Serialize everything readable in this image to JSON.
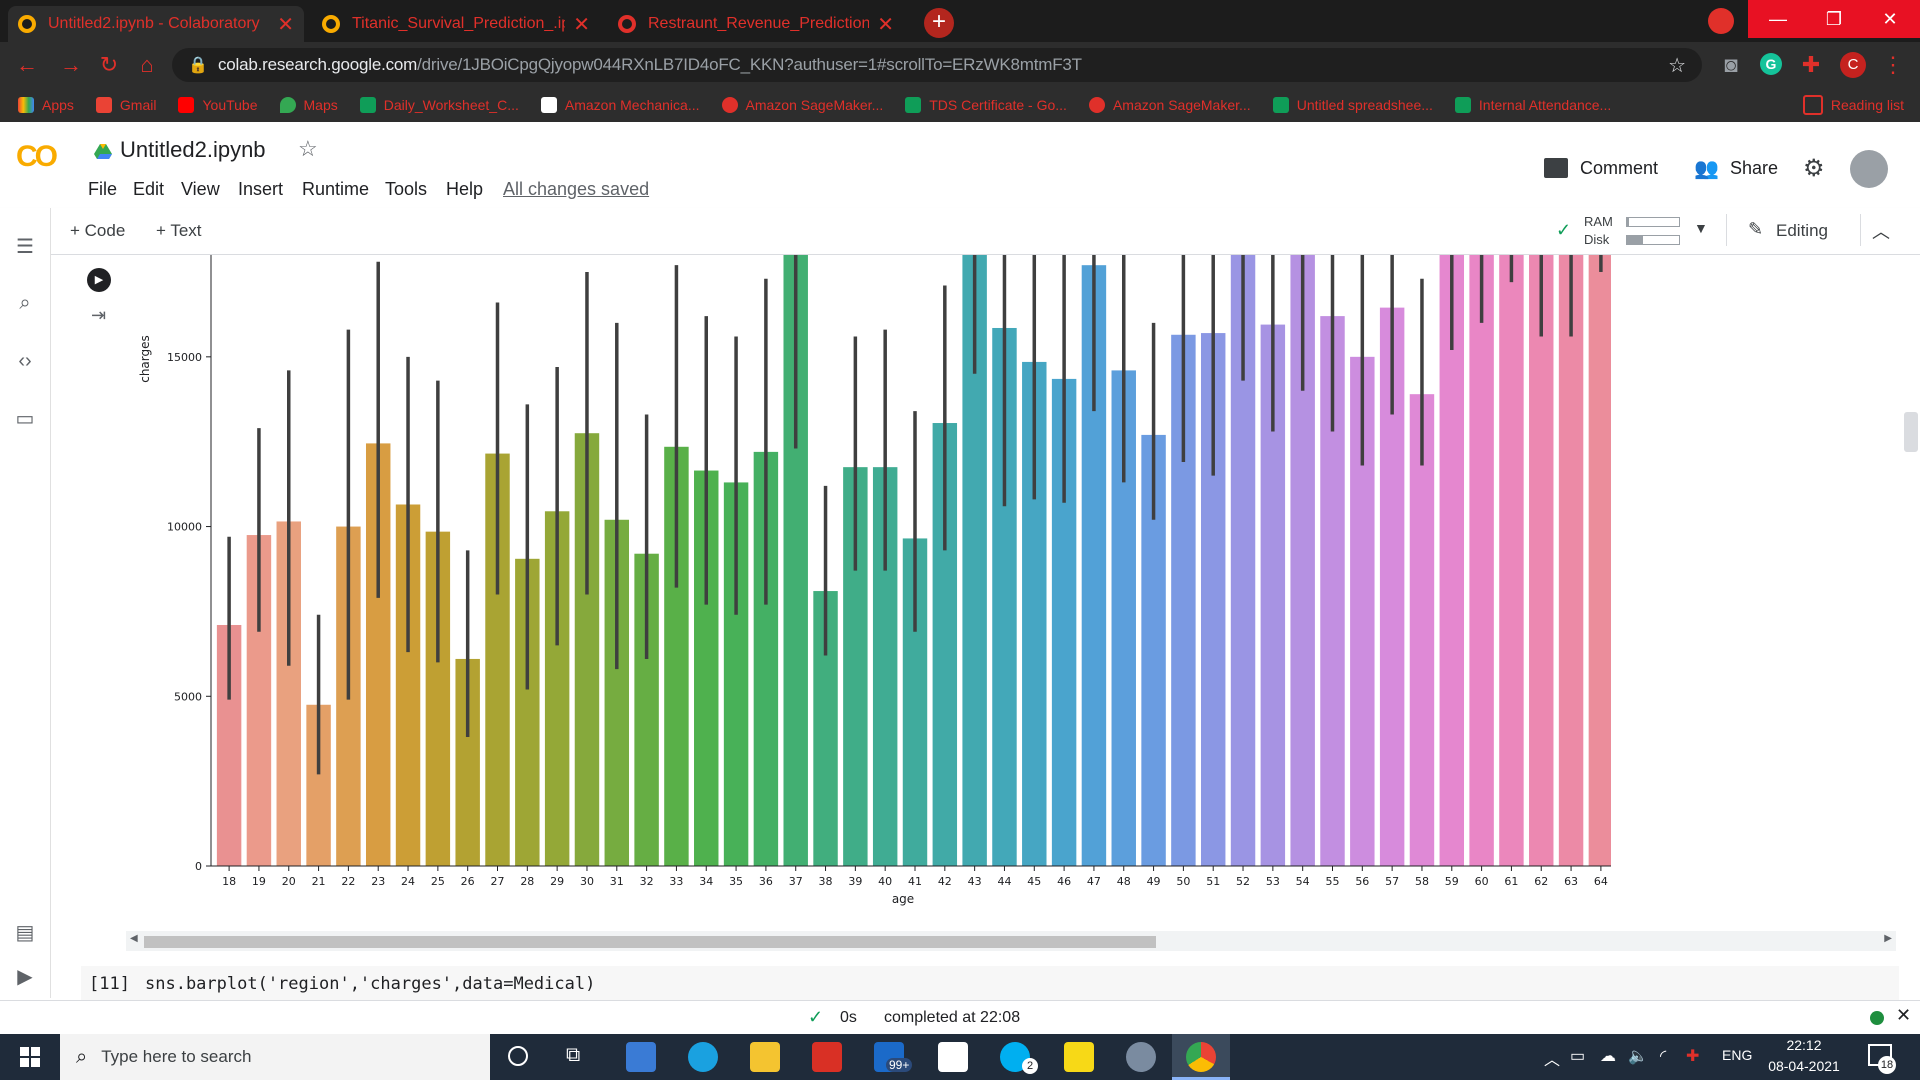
{
  "browser": {
    "tabs": [
      {
        "title": "Untitled2.ipynb - Colaboratory",
        "active": true
      },
      {
        "title": "Titanic_Survival_Prediction_.ipyn",
        "active": false
      },
      {
        "title": "Restraunt_Revenue_Prediction.ip",
        "active": false
      }
    ],
    "url_host": "colab.research.google.com",
    "url_path": "/drive/1JBOiCpgQjyopw044RXnLB7ID4oFC_KKN?authuser=1#scrollTo=ERzWK8mtmF3T",
    "profile_initial": "C",
    "bookmarks": [
      "Apps",
      "Gmail",
      "YouTube",
      "Maps",
      "Daily_Worksheet_C...",
      "Amazon Mechanica...",
      "Amazon SageMaker...",
      "TDS Certificate - Go...",
      "Amazon SageMaker...",
      "Untitled spreadshee...",
      "Internal Attendance...",
      "Reading list"
    ]
  },
  "colab": {
    "logo": "CO",
    "notebook_title": "Untitled2.ipynb",
    "menu": [
      "File",
      "Edit",
      "View",
      "Insert",
      "Runtime",
      "Tools",
      "Help"
    ],
    "save_status": "All changes saved",
    "comment_label": "Comment",
    "share_label": "Share",
    "add_code_label": "+ Code",
    "add_text_label": "+ Text",
    "ram_label": "RAM",
    "disk_label": "Disk",
    "editing_label": "Editing"
  },
  "next_cell": {
    "prompt": "[11]",
    "code": "sns.barplot('region','charges',data=Medical)"
  },
  "status": {
    "elapsed": "0s",
    "message": "completed at 22:08"
  },
  "taskbar": {
    "search_placeholder": "Type here to search",
    "mail_badge": "99+",
    "skype_badge": "2",
    "language": "ENG",
    "time": "22:12",
    "date": "08-04-2021",
    "notification_count": "18"
  },
  "chart_data": {
    "type": "bar",
    "xlabel": "age",
    "ylabel": "charges",
    "ylim": [
      0,
      18000
    ],
    "yticks": [
      0,
      5000,
      10000,
      15000
    ],
    "categories": [
      "18",
      "19",
      "20",
      "21",
      "22",
      "23",
      "24",
      "25",
      "26",
      "27",
      "28",
      "29",
      "30",
      "31",
      "32",
      "33",
      "34",
      "35",
      "36",
      "37",
      "38",
      "39",
      "40",
      "41",
      "42",
      "43",
      "44",
      "45",
      "46",
      "47",
      "48",
      "49",
      "50",
      "51",
      "52",
      "53",
      "54",
      "55",
      "56",
      "57",
      "58",
      "59",
      "60",
      "61",
      "62",
      "63",
      "64"
    ],
    "values": [
      7100,
      9750,
      10150,
      4750,
      10000,
      12450,
      10650,
      9850,
      6100,
      12150,
      9050,
      10450,
      12750,
      10200,
      9200,
      12350,
      11650,
      11300,
      12200,
      18000,
      8100,
      11750,
      11750,
      9650,
      13050,
      18000,
      15850,
      14850,
      14350,
      17700,
      14600,
      12700,
      15650,
      15700,
      18000,
      15950,
      18000,
      16200,
      15000,
      16450,
      13900,
      18000,
      18000,
      18000,
      18000,
      18000,
      18000
    ],
    "ci_low": [
      4900,
      6900,
      5900,
      2700,
      4900,
      7900,
      6300,
      6000,
      3800,
      8000,
      5200,
      6500,
      8000,
      5800,
      6100,
      8200,
      7700,
      7400,
      7700,
      12300,
      6200,
      8700,
      8700,
      6900,
      9300,
      14500,
      10600,
      10800,
      10700,
      13400,
      11300,
      10200,
      11900,
      11500,
      14300,
      12800,
      14000,
      12800,
      11800,
      13300,
      11800,
      15200,
      16000,
      17200,
      15600,
      15600,
      17500
    ],
    "ci_high": [
      9700,
      12900,
      14600,
      7400,
      15800,
      17800,
      15000,
      14300,
      9300,
      16600,
      13600,
      14700,
      17500,
      16000,
      13300,
      17700,
      16200,
      15600,
      17300,
      18000,
      11200,
      15600,
      15800,
      13400,
      17100,
      18000,
      18000,
      18000,
      18000,
      18000,
      18000,
      16000,
      18000,
      18000,
      18000,
      18000,
      18000,
      18000,
      18000,
      18000,
      17300,
      18000,
      18000,
      18000,
      18000,
      18000,
      18000
    ],
    "colors": [
      "#e99191",
      "#eb9a8b",
      "#e9a17f",
      "#e4a067",
      "#dd9f52",
      "#d89d42",
      "#cc9e36",
      "#bfa032",
      "#b3a232",
      "#a9a433",
      "#9ea635",
      "#94a837",
      "#86a93c",
      "#76ac40",
      "#66ae44",
      "#59b048",
      "#4fb14e",
      "#48b158",
      "#44b064",
      "#42af72",
      "#41ae7e",
      "#40ad88",
      "#40ac93",
      "#40ab9d",
      "#41aaa7",
      "#42a9b0",
      "#43a8b9",
      "#46a6c3",
      "#4aa4cd",
      "#52a1d7",
      "#5c9fdc",
      "#6a9ce1",
      "#7b99e3",
      "#8b97e4",
      "#9a95e4",
      "#a793e3",
      "#b591e2",
      "#c28fe1",
      "#cd8ddf",
      "#d78bdc",
      "#df89d6",
      "#e587cf",
      "#e986c6",
      "#eb87bc",
      "#ec88b1",
      "#ec8aa6",
      "#eb8d9b"
    ]
  }
}
